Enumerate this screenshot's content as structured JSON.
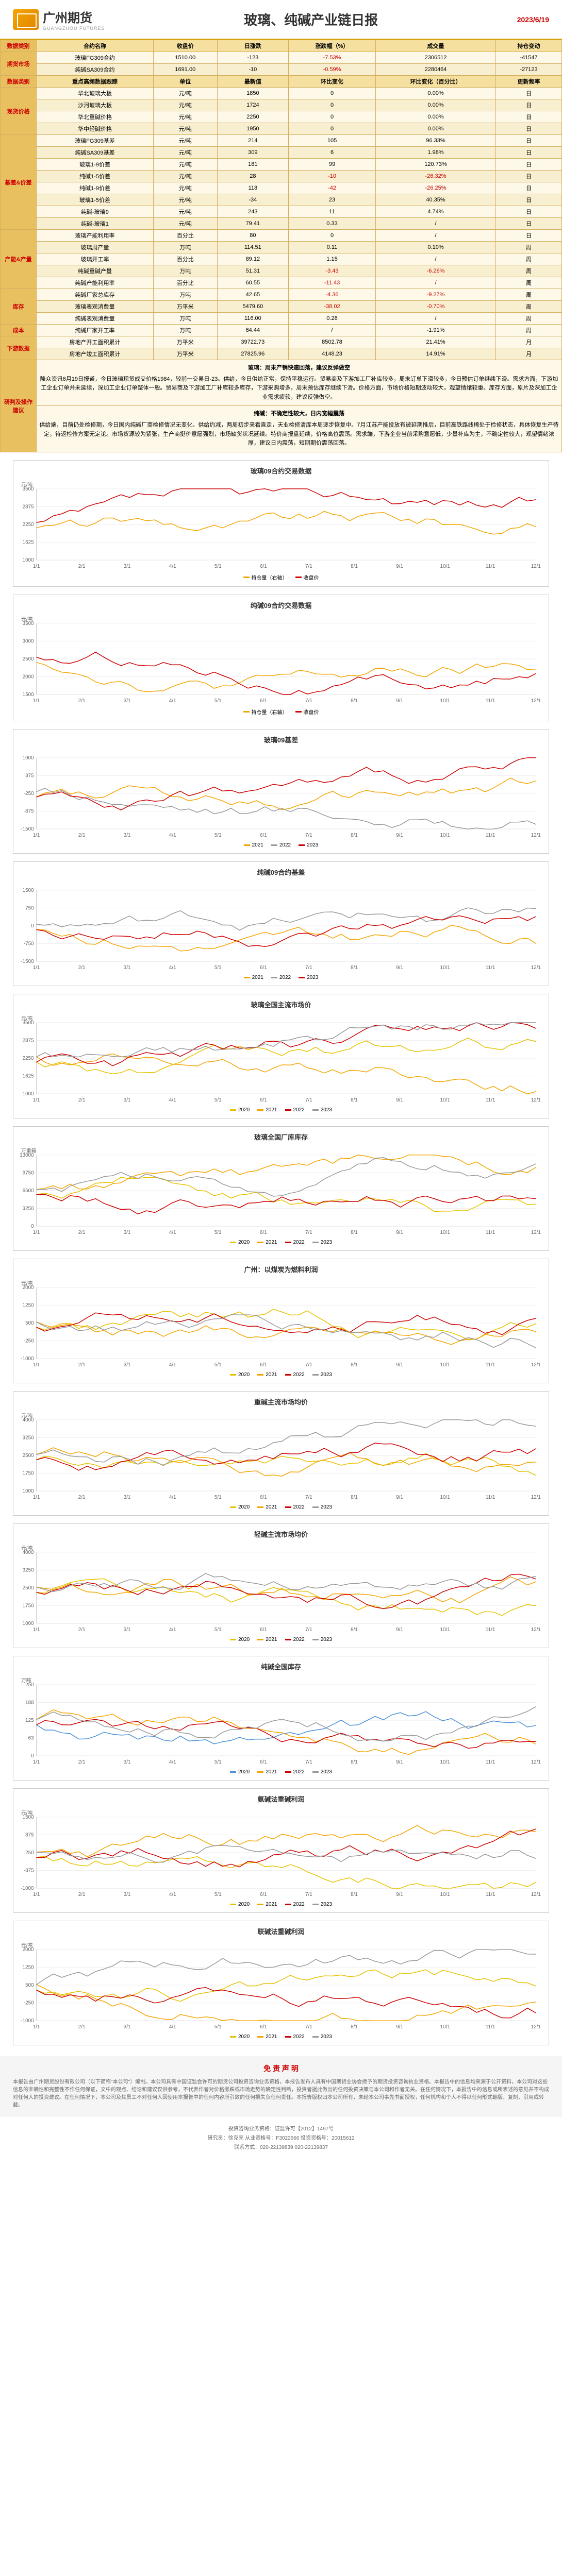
{
  "header": {
    "company_cn": "广州期货",
    "company_en": "GUANGZHOU FUTURES",
    "title": "玻璃、纯碱产业链日报",
    "date": "2023/6/19"
  },
  "futures": {
    "cat": "期货市场",
    "headers": [
      "合约名称",
      "收盘价",
      "日涨跌",
      "涨跌幅（%）",
      "成交量",
      "持仓变动"
    ],
    "rows": [
      {
        "name": "玻璃FG309合约",
        "close": "1510.00",
        "chg": "-123",
        "pct": "-7.53%",
        "vol": "2306512",
        "oi": "-41547",
        "cls": "red"
      },
      {
        "name": "纯碱SA309合约",
        "close": "1691.00",
        "chg": "-10",
        "pct": "-0.59%",
        "vol": "2280464",
        "oi": "-27123",
        "cls": "red"
      }
    ]
  },
  "spot": {
    "cat": "现货价格",
    "subcat": "重点高频数据跟踪",
    "headers": [
      "单位",
      "最新值",
      "环比变化",
      "环比变化（百分比）",
      "更新频率"
    ],
    "rows": [
      {
        "name": "华北玻璃大板",
        "unit": "元/吨",
        "val": "1850",
        "chg": "0",
        "pct": "0.00%",
        "freq": "日"
      },
      {
        "name": "沙河玻璃大板",
        "unit": "元/吨",
        "val": "1724",
        "chg": "0",
        "pct": "0.00%",
        "freq": "日"
      },
      {
        "name": "华北重碱价格",
        "unit": "元/吨",
        "val": "2250",
        "chg": "0",
        "pct": "0.00%",
        "freq": "日"
      },
      {
        "name": "华中轻碱价格",
        "unit": "元/吨",
        "val": "1950",
        "chg": "0",
        "pct": "0.00%",
        "freq": "日"
      }
    ]
  },
  "basis": {
    "cat": "基差&价差",
    "rows": [
      {
        "name": "玻璃FG309基差",
        "unit": "元/吨",
        "val": "214",
        "chg": "105",
        "pct": "96.33%",
        "freq": "日"
      },
      {
        "name": "纯碱SA309基差",
        "unit": "元/吨",
        "val": "309",
        "chg": "6",
        "pct": "1.98%",
        "freq": "日"
      },
      {
        "name": "玻璃1-9价差",
        "unit": "元/吨",
        "val": "181",
        "chg": "99",
        "pct": "120.73%",
        "freq": "日"
      },
      {
        "name": "纯碱1-5价差",
        "unit": "元/吨",
        "val": "28",
        "chg": "-10",
        "pct": "-26.32%",
        "freq": "日",
        "cls": "red"
      },
      {
        "name": "纯碱1-9价差",
        "unit": "元/吨",
        "val": "118",
        "chg": "-42",
        "pct": "-26.25%",
        "freq": "日",
        "cls": "red"
      },
      {
        "name": "玻璃1-5价差",
        "unit": "元/吨",
        "val": "-34",
        "chg": "23",
        "pct": "40.35%",
        "freq": "日"
      },
      {
        "name": "纯碱-玻璃9",
        "unit": "元/吨",
        "val": "243",
        "chg": "11",
        "pct": "4.74%",
        "freq": "日"
      },
      {
        "name": "纯碱-玻璃1",
        "unit": "元/吨",
        "val": "79.41",
        "chg": "0.33",
        "pct": "/",
        "freq": "日"
      }
    ]
  },
  "capacity": {
    "cat": "产能&产量",
    "rows": [
      {
        "name": "玻璃产能利用率",
        "unit": "百分比",
        "val": "80",
        "chg": "0",
        "pct": "/",
        "freq": "日"
      },
      {
        "name": "玻璃周产量",
        "unit": "万吨",
        "val": "114.51",
        "chg": "0.11",
        "pct": "0.10%",
        "freq": "周"
      },
      {
        "name": "玻璃开工率",
        "unit": "百分比",
        "val": "89.12",
        "chg": "1.15",
        "pct": "/",
        "freq": "周"
      },
      {
        "name": "纯碱重碱产量",
        "unit": "万吨",
        "val": "51.31",
        "chg": "-3.43",
        "pct": "-6.26%",
        "freq": "周",
        "cls": "red"
      },
      {
        "name": "纯碱产能利用率",
        "unit": "百分比",
        "val": "60.55",
        "chg": "-11.43",
        "pct": "/",
        "freq": "周",
        "cls": "red"
      }
    ]
  },
  "inventory": {
    "cat": "库存",
    "rows": [
      {
        "name": "纯碱厂家总库存",
        "unit": "万吨",
        "val": "42.65",
        "chg": "-4.36",
        "pct": "-9.27%",
        "freq": "周",
        "cls": "red"
      },
      {
        "name": "玻璃表观消费量",
        "unit": "万平米",
        "val": "5479.60",
        "chg": "-38.02",
        "pct": "-0.70%",
        "freq": "周",
        "cls": "red"
      },
      {
        "name": "纯碱表观消费量",
        "unit": "万吨",
        "val": "116.00",
        "chg": "0.26",
        "pct": "/",
        "freq": "周"
      }
    ]
  },
  "cost": {
    "cat": "成本",
    "rows": [
      {
        "name": "纯碱厂家开工率",
        "unit": "万吨",
        "val": "64.44",
        "chg": "/",
        "pct": "-1.91%",
        "freq": "周"
      }
    ]
  },
  "downstream": {
    "cat": "下游数据",
    "rows": [
      {
        "name": "房地产开工面积累计",
        "unit": "万平米",
        "val": "39722.73",
        "chg": "8502.78",
        "pct": "21.41%",
        "freq": "月"
      },
      {
        "name": "房地产竣工面积累计",
        "unit": "万平米",
        "val": "27825.96",
        "chg": "4148.23",
        "pct": "14.91%",
        "freq": "月"
      }
    ]
  },
  "analysis": {
    "cat": "研判及操作建议",
    "glass_title": "玻璃：周末产销快速回落，建议反弹做空",
    "glass_text": "隆众资讯6月19日报道，今日玻璃现货成交价格1984，较前一交易日-23。供给，今日供给正常，保持平稳运行。贸易商及下游加工厂补库较多，周末订单下滑较多，今日预估订单继续下滑。需求方面，下游加工企业订单并未延续，深加工企业订单整体一般。贸易商及下游加工厂补库较多库存，下游采购增多，周末预估库存继续下滑。价格方面，市场价格短期波动较大，观望情绪较重。库存方面，原片及深加工企业需求疲软，建议反弹做空。",
    "soda_title": "纯碱：不确定性较大，日内宽幅震荡",
    "soda_text": "供给端，目前仍处检修期，今日国内纯碱厂商检修情况无变化。供给约减，两周初步来看直走，天业检修清库本周逐步恢复中。7月江苏产能投放有被延期推后，目前高铁路线稀处于检修状态，具体恢复生产待定，待返检修方案无定论。市场货源较为紧张，生产商挺价意愿强烈，市场缺货状况延续。特价商报盘延续，价格高位震荡。需求端，下游企业当前采购意愿低，少量补库为主，不确定性较大，观望情绪浓厚，建议日内震荡，短期期价震荡回落。"
  },
  "charts": [
    {
      "title": "玻璃09合约交易数据",
      "ylabel": "元/吨",
      "y2label": "",
      "ymin": 1000,
      "ymax": 3500,
      "colors": [
        "#f4a500",
        "#c00"
      ],
      "legend": [
        "持仓量（右轴）",
        "收盘价"
      ],
      "type": "dual"
    },
    {
      "title": "纯碱09合约交易数据",
      "ylabel": "元/吨",
      "ymin": 1500,
      "ymax": 3500,
      "colors": [
        "#f4a500",
        "#c00"
      ],
      "legend": [
        "持仓量（右轴）",
        "收盘价"
      ],
      "type": "dual"
    },
    {
      "title": "玻璃09基差",
      "ylabel": "",
      "ymin": -1500,
      "ymax": 1000,
      "colors": [
        "#f4a500",
        "#999",
        "#c00"
      ],
      "legend": [
        "2021",
        "2022",
        "2023"
      ],
      "type": "multi"
    },
    {
      "title": "纯碱09合约基差",
      "ylabel": "",
      "ymin": -1500,
      "ymax": 1500,
      "colors": [
        "#f4a500",
        "#999",
        "#c00"
      ],
      "legend": [
        "2021",
        "2022",
        "2023"
      ],
      "type": "multi"
    },
    {
      "title": "玻璃全国主流市场价",
      "ylabel": "元/吨",
      "ymin": 1000,
      "ymax": 3500,
      "colors": [
        "#e6c200",
        "#f4a500",
        "#c00",
        "#999"
      ],
      "legend": [
        "2020",
        "2021",
        "2022",
        "2023"
      ],
      "type": "multi"
    },
    {
      "title": "玻璃全国厂库库存",
      "ylabel": "万重箱",
      "ymin": 0,
      "ymax": 13000,
      "colors": [
        "#e6c200",
        "#f4a500",
        "#c00",
        "#999"
      ],
      "legend": [
        "2020",
        "2021",
        "2022",
        "2023"
      ],
      "type": "multi"
    },
    {
      "title": "广州：以煤炭为燃料利润",
      "ylabel": "元/吨",
      "ymin": -1000,
      "ymax": 2000,
      "colors": [
        "#e6c200",
        "#f4a500",
        "#c00",
        "#999"
      ],
      "legend": [
        "2020",
        "2021",
        "2022",
        "2023"
      ],
      "type": "multi"
    },
    {
      "title": "重碱主流市场均价",
      "ylabel": "元/吨",
      "ymin": 1000,
      "ymax": 4000,
      "colors": [
        "#e6c200",
        "#f4a500",
        "#c00",
        "#999"
      ],
      "legend": [
        "2020",
        "2021",
        "2022",
        "2023"
      ],
      "type": "multi"
    },
    {
      "title": "轻碱主流市场均价",
      "ylabel": "元/吨",
      "ymin": 1000,
      "ymax": 4000,
      "colors": [
        "#e6c200",
        "#f4a500",
        "#c00",
        "#999"
      ],
      "legend": [
        "2020",
        "2021",
        "2022",
        "2023"
      ],
      "type": "multi"
    },
    {
      "title": "纯碱全国库存",
      "ylabel": "万吨",
      "ymin": 0,
      "ymax": 250,
      "colors": [
        "#4a90d9",
        "#f4a500",
        "#c00",
        "#999"
      ],
      "legend": [
        "2020",
        "2021",
        "2022",
        "2023"
      ],
      "type": "multi"
    },
    {
      "title": "氨碱法重碱利润",
      "ylabel": "元/吨",
      "ymin": -1000,
      "ymax": 1500,
      "colors": [
        "#e6c200",
        "#f4a500",
        "#c00",
        "#999"
      ],
      "legend": [
        "2020",
        "2021",
        "2022",
        "2023"
      ],
      "type": "multi"
    },
    {
      "title": "联碱法重碱利润",
      "ylabel": "元/吨",
      "ymin": -1000,
      "ymax": 2000,
      "colors": [
        "#e6c200",
        "#f4a500",
        "#c00",
        "#999"
      ],
      "legend": [
        "2020",
        "2021",
        "2022",
        "2023"
      ],
      "type": "multi"
    }
  ],
  "disclaimer": {
    "title": "免 责 声 明",
    "text": "本报告由广州期货股份有限公司（以下简称\"本公司\"）编制。本公司具有中国证监会许可的期货公司投资咨询业务资格，本报告发布人具有中国期货业协会授予的期货投资咨询执业资格。本报告中的信息均来源于公开资料，本公司对这些信息的准确性和完整性不作任何保证，文中的观点、结论和建议仅供参考，不代表作者对价格涨跌或市场走势的确定性判断，投资者据此做出的任何投资决策与本公司和作者无关。在任何情况下，本报告中的信息或所表述的意见并不构成对任何人的投资建议。在任何情况下，本公司及其员工不对任何人因使用本报告中的任何内容所引致的任何损失负任何责任。本报告版权归本公司所有，未经本公司事先书面授权，任何机构和个人不得以任何形式翻版、复制、引用或转载。"
  },
  "footer": {
    "line1": "投资咨询业务资格：证监许可【2012】1497号",
    "line2": "研究员：徐克亮 从业资格号：F3022666 投资资格号：20015612",
    "line3": "联系方式：020-22139839  020-22139837"
  }
}
